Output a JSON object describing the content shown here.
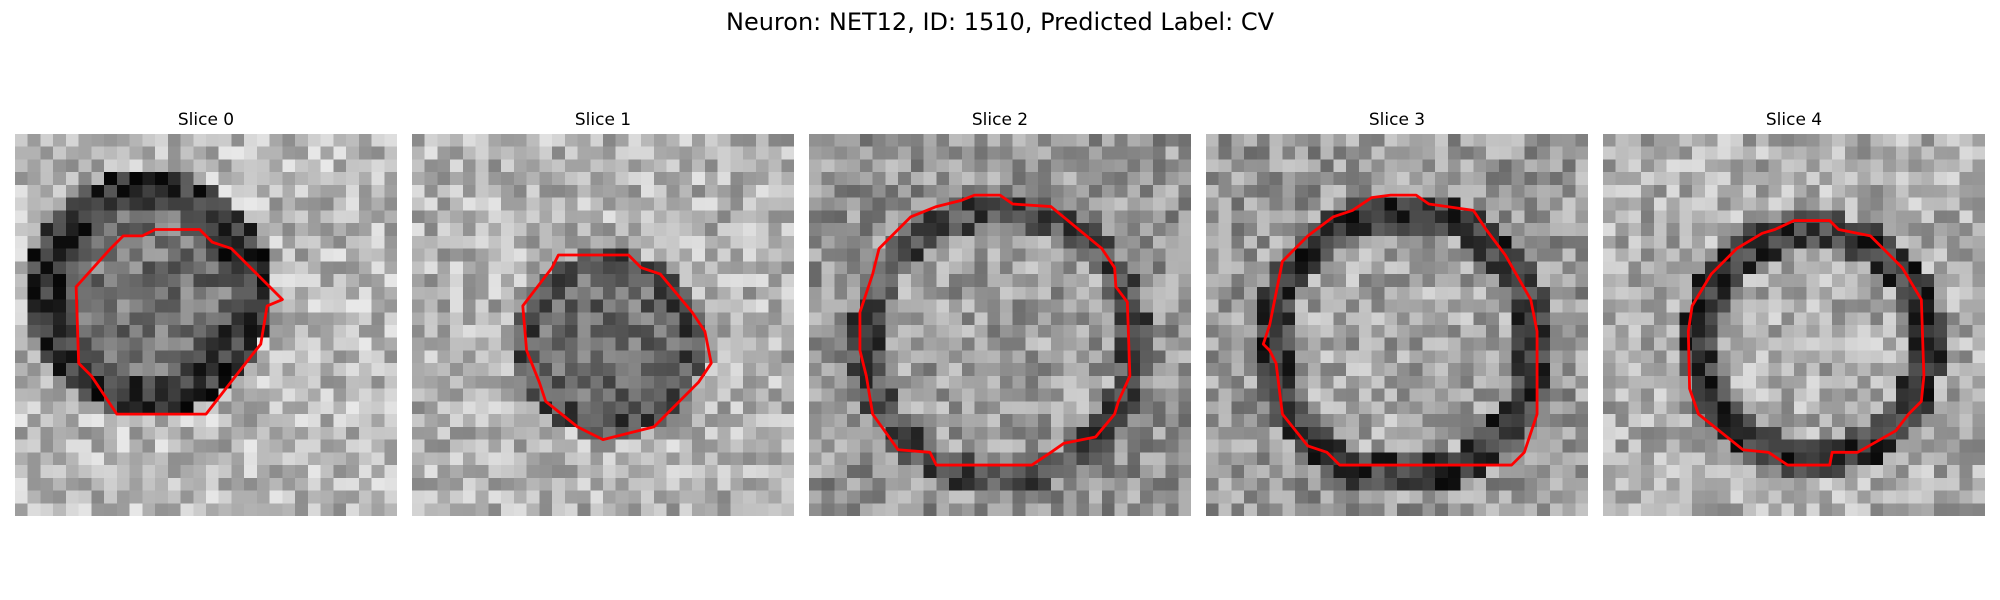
{
  "figure": {
    "title": "Neuron: NET12, ID: 1510, Predicted Label: CV",
    "contour_color": "#ff0000",
    "colormap": "gray"
  },
  "panels": [
    {
      "title": "Slice 0"
    },
    {
      "title": "Slice 1"
    },
    {
      "title": "Slice 2"
    },
    {
      "title": "Slice 3"
    },
    {
      "title": "Slice 4"
    }
  ]
}
